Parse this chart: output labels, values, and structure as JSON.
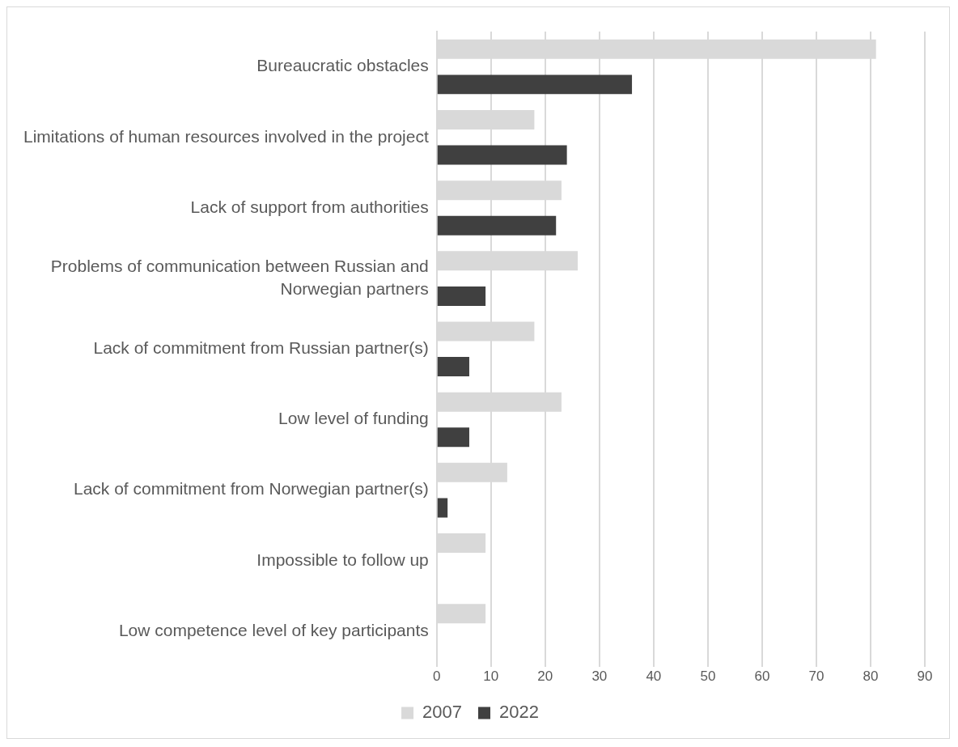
{
  "chart_data": {
    "type": "bar",
    "orientation": "horizontal",
    "categories": [
      "Bureaucratic obstacles",
      "Limitations of human resources involved in the project",
      "Lack of support from authorities",
      "Problems of communication between Russian and Norwegian partners",
      "Lack of commitment from Russian partner(s)",
      "Low level of funding",
      "Lack of commitment from Norwegian partner(s)",
      "Impossible to follow up",
      "Low competence level of key participants"
    ],
    "series": [
      {
        "name": "2007",
        "color": "#d9d9d9",
        "values": [
          81,
          18,
          23,
          26,
          18,
          23,
          13,
          9,
          9
        ]
      },
      {
        "name": "2022",
        "color": "#404040",
        "values": [
          36,
          24,
          22,
          9,
          6,
          6,
          2,
          null,
          null
        ]
      }
    ],
    "xlim": [
      0,
      90
    ],
    "xticks": [
      0,
      10,
      20,
      30,
      40,
      50,
      60,
      70,
      80,
      90
    ],
    "grid": "x",
    "legend": "bottom"
  }
}
